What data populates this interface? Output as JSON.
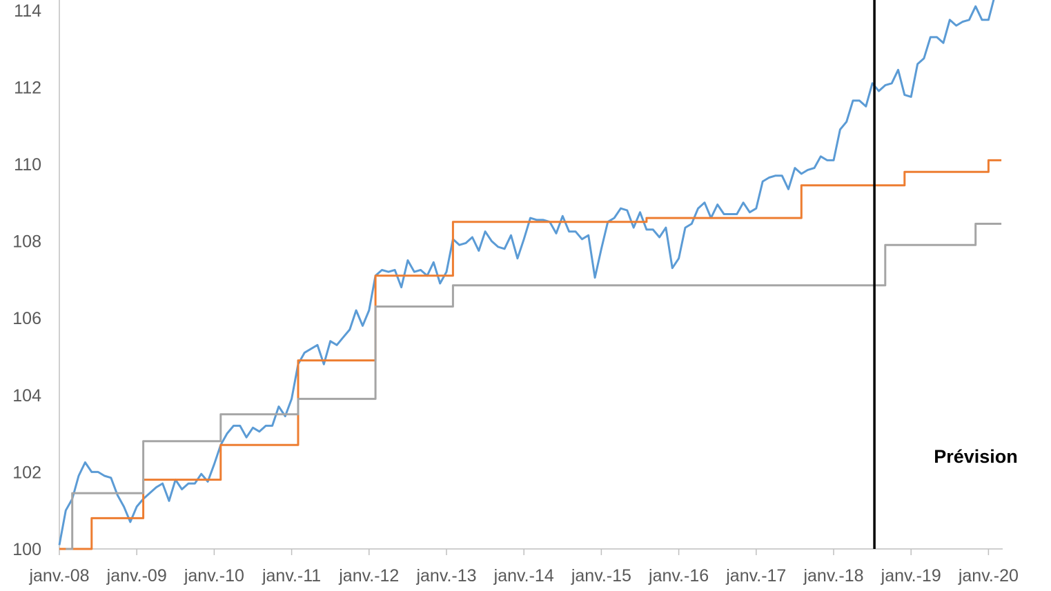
{
  "chart_data": {
    "type": "line",
    "title": "",
    "xlabel": "",
    "ylabel": "",
    "ylim": [
      100,
      114.3
    ],
    "xlim": [
      "2008-01",
      "2020-03"
    ],
    "grid": false,
    "y_ticks": [
      "100",
      "102",
      "104",
      "106",
      "108",
      "110",
      "112",
      "114"
    ],
    "x_ticks": [
      {
        "label": "janv.-08",
        "date": "2008-01"
      },
      {
        "label": "janv.-09",
        "date": "2009-01"
      },
      {
        "label": "janv.-10",
        "date": "2010-01"
      },
      {
        "label": "janv.-11",
        "date": "2011-01"
      },
      {
        "label": "janv.-12",
        "date": "2012-01"
      },
      {
        "label": "janv.-13",
        "date": "2013-01"
      },
      {
        "label": "janv.-14",
        "date": "2014-01"
      },
      {
        "label": "janv.-15",
        "date": "2015-01"
      },
      {
        "label": "janv.-16",
        "date": "2016-01"
      },
      {
        "label": "janv.-17",
        "date": "2017-01"
      },
      {
        "label": "janv.-18",
        "date": "2018-01"
      },
      {
        "label": "janv.-19",
        "date": "2019-01"
      },
      {
        "label": "janv.-20",
        "date": "2020-01"
      }
    ],
    "annotations": [
      {
        "text": "Prévision",
        "type": "vertical-line",
        "date": "2018-07"
      }
    ],
    "series": [
      {
        "color": "#5b9bd5",
        "points": [
          [
            "2008-01",
            100.1
          ],
          [
            "2008-02",
            101.0
          ],
          [
            "2008-03",
            101.3
          ],
          [
            "2008-04",
            101.9
          ],
          [
            "2008-05",
            102.25
          ],
          [
            "2008-06",
            102.0
          ],
          [
            "2008-07",
            102.0
          ],
          [
            "2008-08",
            101.9
          ],
          [
            "2008-09",
            101.85
          ],
          [
            "2008-10",
            101.4
          ],
          [
            "2008-11",
            101.1
          ],
          [
            "2008-12",
            100.7
          ],
          [
            "2009-01",
            101.1
          ],
          [
            "2009-02",
            101.3
          ],
          [
            "2009-03",
            101.45
          ],
          [
            "2009-04",
            101.6
          ],
          [
            "2009-05",
            101.7
          ],
          [
            "2009-06",
            101.25
          ],
          [
            "2009-07",
            101.8
          ],
          [
            "2009-08",
            101.55
          ],
          [
            "2009-09",
            101.7
          ],
          [
            "2009-10",
            101.7
          ],
          [
            "2009-11",
            101.95
          ],
          [
            "2009-12",
            101.75
          ],
          [
            "2010-01",
            102.2
          ],
          [
            "2010-02",
            102.7
          ],
          [
            "2010-03",
            103.0
          ],
          [
            "2010-04",
            103.2
          ],
          [
            "2010-05",
            103.2
          ],
          [
            "2010-06",
            102.9
          ],
          [
            "2010-07",
            103.15
          ],
          [
            "2010-08",
            103.05
          ],
          [
            "2010-09",
            103.2
          ],
          [
            "2010-10",
            103.2
          ],
          [
            "2010-11",
            103.7
          ],
          [
            "2010-12",
            103.45
          ],
          [
            "2011-01",
            103.9
          ],
          [
            "2011-02",
            104.8
          ],
          [
            "2011-03",
            105.1
          ],
          [
            "2011-04",
            105.2
          ],
          [
            "2011-05",
            105.3
          ],
          [
            "2011-06",
            104.8
          ],
          [
            "2011-07",
            105.4
          ],
          [
            "2011-08",
            105.3
          ],
          [
            "2011-09",
            105.5
          ],
          [
            "2011-10",
            105.7
          ],
          [
            "2011-11",
            106.2
          ],
          [
            "2011-12",
            105.8
          ],
          [
            "2012-01",
            106.2
          ],
          [
            "2012-02",
            107.1
          ],
          [
            "2012-03",
            107.25
          ],
          [
            "2012-04",
            107.2
          ],
          [
            "2012-05",
            107.25
          ],
          [
            "2012-06",
            106.8
          ],
          [
            "2012-07",
            107.5
          ],
          [
            "2012-08",
            107.2
          ],
          [
            "2012-09",
            107.25
          ],
          [
            "2012-10",
            107.1
          ],
          [
            "2012-11",
            107.45
          ],
          [
            "2012-12",
            106.9
          ],
          [
            "2013-01",
            107.2
          ],
          [
            "2013-02",
            108.05
          ],
          [
            "2013-03",
            107.9
          ],
          [
            "2013-04",
            107.95
          ],
          [
            "2013-05",
            108.1
          ],
          [
            "2013-06",
            107.75
          ],
          [
            "2013-07",
            108.25
          ],
          [
            "2013-08",
            108.0
          ],
          [
            "2013-09",
            107.85
          ],
          [
            "2013-10",
            107.8
          ],
          [
            "2013-11",
            108.15
          ],
          [
            "2013-12",
            107.55
          ],
          [
            "2014-01",
            108.05
          ],
          [
            "2014-02",
            108.6
          ],
          [
            "2014-03",
            108.55
          ],
          [
            "2014-04",
            108.55
          ],
          [
            "2014-05",
            108.5
          ],
          [
            "2014-06",
            108.2
          ],
          [
            "2014-07",
            108.65
          ],
          [
            "2014-08",
            108.25
          ],
          [
            "2014-09",
            108.25
          ],
          [
            "2014-10",
            108.05
          ],
          [
            "2014-11",
            108.15
          ],
          [
            "2014-12",
            107.05
          ],
          [
            "2015-01",
            107.8
          ],
          [
            "2015-02",
            108.5
          ],
          [
            "2015-03",
            108.6
          ],
          [
            "2015-04",
            108.85
          ],
          [
            "2015-05",
            108.8
          ],
          [
            "2015-06",
            108.35
          ],
          [
            "2015-07",
            108.75
          ],
          [
            "2015-08",
            108.3
          ],
          [
            "2015-09",
            108.3
          ],
          [
            "2015-10",
            108.1
          ],
          [
            "2015-11",
            108.35
          ],
          [
            "2015-12",
            107.3
          ],
          [
            "2016-01",
            107.55
          ],
          [
            "2016-02",
            108.35
          ],
          [
            "2016-03",
            108.45
          ],
          [
            "2016-04",
            108.85
          ],
          [
            "2016-05",
            109.0
          ],
          [
            "2016-06",
            108.6
          ],
          [
            "2016-07",
            108.95
          ],
          [
            "2016-08",
            108.7
          ],
          [
            "2016-09",
            108.7
          ],
          [
            "2016-10",
            108.7
          ],
          [
            "2016-11",
            109.0
          ],
          [
            "2016-12",
            108.75
          ],
          [
            "2017-01",
            108.85
          ],
          [
            "2017-02",
            109.55
          ],
          [
            "2017-03",
            109.65
          ],
          [
            "2017-04",
            109.7
          ],
          [
            "2017-05",
            109.7
          ],
          [
            "2017-06",
            109.35
          ],
          [
            "2017-07",
            109.9
          ],
          [
            "2017-08",
            109.75
          ],
          [
            "2017-09",
            109.85
          ],
          [
            "2017-10",
            109.9
          ],
          [
            "2017-11",
            110.2
          ],
          [
            "2017-12",
            110.1
          ],
          [
            "2018-01",
            110.1
          ],
          [
            "2018-02",
            110.9
          ],
          [
            "2018-03",
            111.1
          ],
          [
            "2018-04",
            111.65
          ],
          [
            "2018-05",
            111.65
          ],
          [
            "2018-06",
            111.5
          ],
          [
            "2018-07",
            112.1
          ],
          [
            "2018-08",
            111.9
          ],
          [
            "2018-09",
            112.05
          ],
          [
            "2018-10",
            112.1
          ],
          [
            "2018-11",
            112.45
          ],
          [
            "2018-12",
            111.8
          ],
          [
            "2019-01",
            111.75
          ],
          [
            "2019-02",
            112.6
          ],
          [
            "2019-03",
            112.75
          ],
          [
            "2019-04",
            113.3
          ],
          [
            "2019-05",
            113.3
          ],
          [
            "2019-06",
            113.15
          ],
          [
            "2019-07",
            113.75
          ],
          [
            "2019-08",
            113.6
          ],
          [
            "2019-09",
            113.7
          ],
          [
            "2019-10",
            113.75
          ],
          [
            "2019-11",
            114.1
          ],
          [
            "2019-12",
            113.75
          ],
          [
            "2020-01",
            113.75
          ],
          [
            "2020-02",
            114.4
          ]
        ]
      },
      {
        "color": "#ed7d31",
        "step": true,
        "points": [
          [
            "2008-01",
            100.0
          ],
          [
            "2008-06",
            100.8
          ],
          [
            "2009-02",
            101.8
          ],
          [
            "2010-02",
            102.7
          ],
          [
            "2011-02",
            104.9
          ],
          [
            "2012-02",
            107.1
          ],
          [
            "2013-02",
            108.5
          ],
          [
            "2015-08",
            108.6
          ],
          [
            "2017-08",
            109.45
          ],
          [
            "2018-12",
            109.8
          ],
          [
            "2020-01",
            110.1
          ],
          [
            "2020-03",
            110.1
          ]
        ]
      },
      {
        "color": "#a5a5a5",
        "step": true,
        "points": [
          [
            "2008-02",
            100.0
          ],
          [
            "2008-03",
            101.45
          ],
          [
            "2009-02",
            102.8
          ],
          [
            "2010-02",
            103.5
          ],
          [
            "2011-02",
            103.9
          ],
          [
            "2012-02",
            106.3
          ],
          [
            "2013-02",
            106.85
          ],
          [
            "2018-09",
            107.9
          ],
          [
            "2019-11",
            108.45
          ],
          [
            "2020-03",
            108.45
          ]
        ]
      }
    ]
  }
}
